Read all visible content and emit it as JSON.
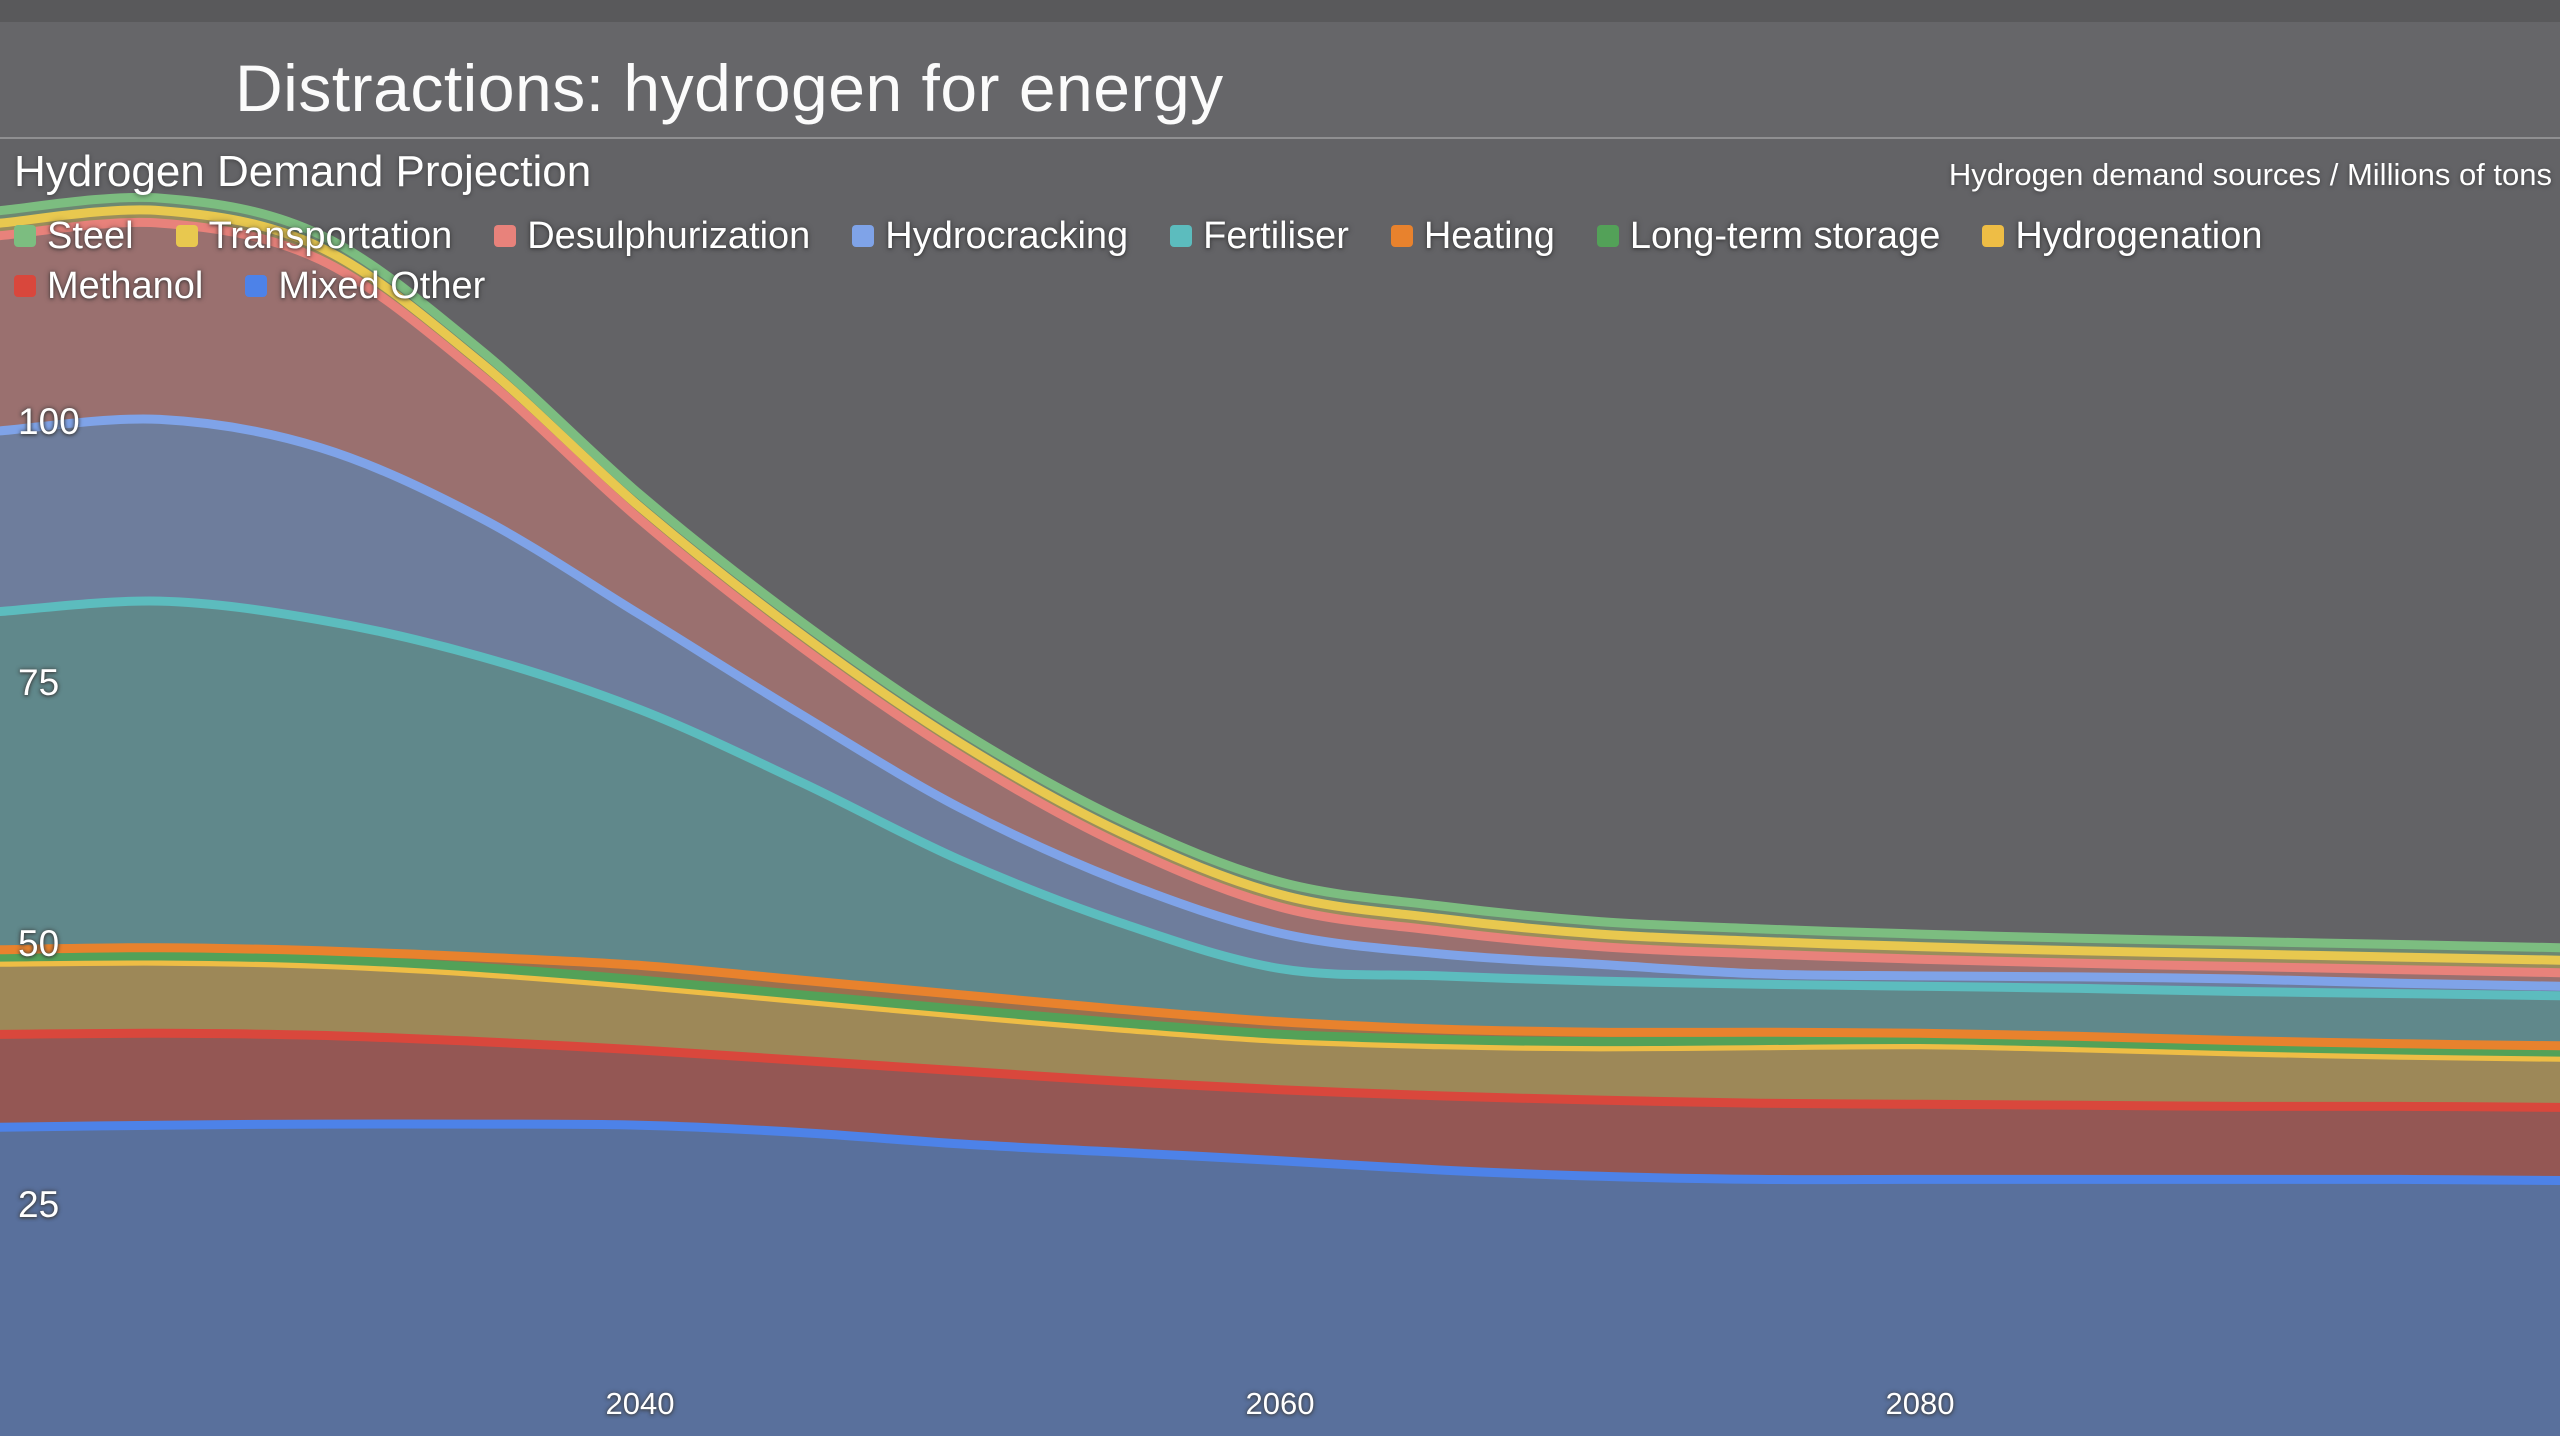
{
  "header": {
    "title": "Distractions: hydrogen for energy"
  },
  "chart_data": {
    "type": "area",
    "stacked": true,
    "title": "Hydrogen Demand Projection",
    "ylabel_note": "Hydrogen demand sources / Millions of tons",
    "xlim": [
      2020,
      2100
    ],
    "ylim": [
      0,
      140
    ],
    "grid": false,
    "legend_position": "top-left",
    "background_color": "#636366",
    "fill_opacity": 0.42,
    "line_width": 9,
    "x": [
      2020,
      2025,
      2030,
      2035,
      2040,
      2045,
      2050,
      2055,
      2060,
      2065,
      2070,
      2075,
      2080,
      2085,
      2090,
      2095,
      2100
    ],
    "x_ticks": [
      2040,
      2060,
      2080
    ],
    "y_ticks": [
      100,
      75,
      50,
      25
    ],
    "series": [
      {
        "name": "Steel",
        "color": "#7cbd80",
        "values": [
          1.2,
          1.2,
          1.2,
          1.2,
          1.2,
          1.2,
          1.2,
          1.2,
          1.2,
          1.2,
          1.2,
          1.2,
          1.2,
          1.2,
          1.2,
          1.2,
          1.2
        ]
      },
      {
        "name": "Transportation",
        "color": "#e8c84f",
        "values": [
          1.2,
          1.2,
          1.2,
          1.2,
          1.2,
          1.2,
          1.2,
          1.2,
          1.2,
          1.2,
          1.2,
          1.2,
          1.2,
          1.2,
          1.2,
          1.2,
          1.2
        ]
      },
      {
        "name": "Desulphurization",
        "color": "#e8827b",
        "values": [
          18.7,
          18.8,
          18.0,
          13.7,
          9.1,
          6.5,
          5.0,
          3.5,
          2.5,
          2.2,
          1.7,
          1.9,
          1.6,
          1.3,
          1.2,
          1.3,
          1.3
        ]
      },
      {
        "name": "Hydrocracking",
        "color": "#7fa3e8",
        "values": [
          17.3,
          17.4,
          16.5,
          13.3,
          9.1,
          6.5,
          5.0,
          4.0,
          3.4,
          2.1,
          1.6,
          1.0,
          1.0,
          1.1,
          1.2,
          1.0,
          0.9
        ]
      },
      {
        "name": "Fertiliser",
        "color": "#5cbcbe",
        "values": [
          32.4,
          33.2,
          31.7,
          28.8,
          24.5,
          19.0,
          12.9,
          8.3,
          5.1,
          5.1,
          4.9,
          4.6,
          4.5,
          4.6,
          4.7,
          4.8,
          4.8
        ]
      },
      {
        "name": "Heating",
        "color": "#e8822d",
        "values": [
          0.7,
          0.8,
          0.8,
          1.0,
          1.4,
          1.4,
          1.4,
          1.3,
          1.2,
          1.0,
          0.9,
          0.8,
          0.6,
          0.6,
          0.6,
          0.6,
          0.6
        ]
      },
      {
        "name": "Long-term storage",
        "color": "#53a158",
        "values": [
          0.5,
          0.5,
          0.5,
          0.5,
          0.5,
          0.5,
          0.5,
          0.5,
          0.5,
          0.5,
          0.5,
          0.5,
          0.5,
          0.5,
          0.5,
          0.5,
          0.5
        ]
      },
      {
        "name": "Hydrogenation",
        "color": "#eebd45",
        "values": [
          6.9,
          6.9,
          6.8,
          6.6,
          6.2,
          5.8,
          5.4,
          5.1,
          4.8,
          4.9,
          5.1,
          5.5,
          5.7,
          5.5,
          5.2,
          4.9,
          4.8
        ]
      },
      {
        "name": "Methanol",
        "color": "#d9473c",
        "values": [
          8.9,
          8.8,
          8.5,
          7.9,
          7.2,
          6.9,
          7.0,
          6.8,
          6.8,
          7.1,
          7.3,
          7.3,
          7.2,
          7.1,
          7.0,
          7.0,
          7.0
        ]
      },
      {
        "name": "Mixed Other",
        "color": "#4d82e8",
        "values": [
          32.4,
          32.6,
          32.7,
          32.7,
          32.6,
          31.9,
          30.8,
          30.0,
          29.2,
          28.3,
          27.7,
          27.4,
          27.4,
          27.4,
          27.4,
          27.4,
          27.3
        ]
      }
    ],
    "stack_order_bottom_to_top": [
      "Mixed Other",
      "Methanol",
      "Hydrogenation",
      "Long-term storage",
      "Heating",
      "Fertiliser",
      "Hydrocracking",
      "Desulphurization",
      "Transportation",
      "Steel"
    ],
    "legend_rows": [
      [
        "Steel",
        "Transportation",
        "Desulphurization",
        "Hydrocracking",
        "Fertiliser",
        "Heating",
        "Long-term storage",
        "Hydrogenation"
      ],
      [
        "Methanol",
        "Mixed Other"
      ]
    ]
  }
}
